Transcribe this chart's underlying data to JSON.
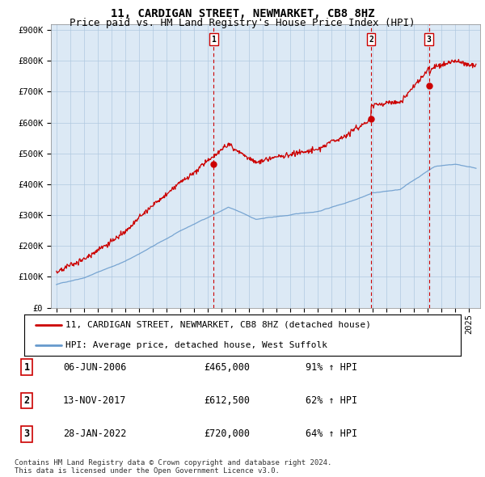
{
  "title": "11, CARDIGAN STREET, NEWMARKET, CB8 8HZ",
  "subtitle": "Price paid vs. HM Land Registry's House Price Index (HPI)",
  "ylim": [
    0,
    900000
  ],
  "yticks": [
    0,
    100000,
    200000,
    300000,
    400000,
    500000,
    600000,
    700000,
    800000,
    900000
  ],
  "ytick_labels": [
    "£0",
    "£100K",
    "£200K",
    "£300K",
    "£400K",
    "£500K",
    "£600K",
    "£700K",
    "£800K",
    "£900K"
  ],
  "background_color": "#ffffff",
  "chart_bg_color": "#dce9f5",
  "chart_bg_right_color": "#cfe0f0",
  "grid_color": "#b0c8e0",
  "sale_color": "#cc0000",
  "hpi_color": "#6699cc",
  "vline_color": "#cc0000",
  "sale_times": [
    2006.43,
    2017.87,
    2022.08
  ],
  "sale_prices": [
    465000,
    612500,
    720000
  ],
  "sale_labels": [
    "1",
    "2",
    "3"
  ],
  "legend_sale_label": "11, CARDIGAN STREET, NEWMARKET, CB8 8HZ (detached house)",
  "legend_hpi_label": "HPI: Average price, detached house, West Suffolk",
  "table_rows": [
    [
      "1",
      "06-JUN-2006",
      "£465,000",
      "91% ↑ HPI"
    ],
    [
      "2",
      "13-NOV-2017",
      "£612,500",
      "62% ↑ HPI"
    ],
    [
      "3",
      "28-JAN-2022",
      "£720,000",
      "64% ↑ HPI"
    ]
  ],
  "footnote1": "Contains HM Land Registry data © Crown copyright and database right 2024.",
  "footnote2": "This data is licensed under the Open Government Licence v3.0.",
  "title_fontsize": 10,
  "subtitle_fontsize": 9,
  "tick_fontsize": 7.5,
  "legend_fontsize": 8,
  "table_fontsize": 8.5,
  "footnote_fontsize": 6.5
}
